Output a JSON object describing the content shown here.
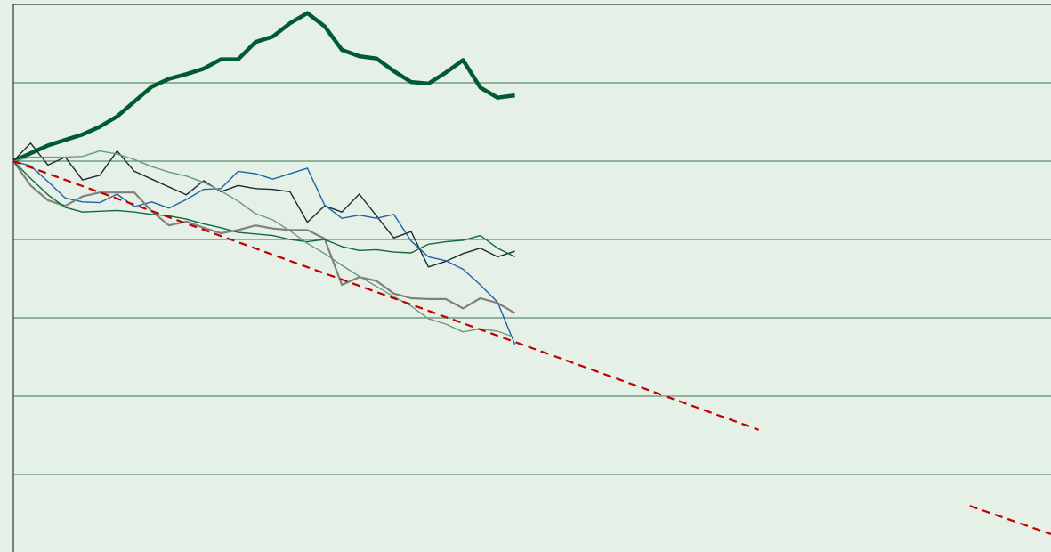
{
  "chart_data": {
    "type": "line",
    "x": [
      0,
      1,
      2,
      3,
      4,
      5,
      6,
      7,
      8,
      9,
      10,
      11,
      12,
      13,
      14,
      15,
      16,
      17,
      18,
      19,
      20,
      21,
      22,
      23,
      24,
      25,
      26,
      27,
      28,
      29
    ],
    "xlim": [
      0,
      60
    ],
    "ylim": [
      -5,
      2
    ],
    "yticks": [
      -4,
      -3,
      -2,
      -1,
      0,
      1
    ],
    "grid": true,
    "series": [
      {
        "color": "#005a32",
        "line_width": 4.5,
        "values": [
          0,
          0.1,
          0.2,
          0.27,
          0.34,
          0.44,
          0.57,
          0.76,
          0.95,
          1.05,
          1.11,
          1.18,
          1.3,
          1.3,
          1.52,
          1.59,
          1.76,
          1.89,
          1.72,
          1.42,
          1.34,
          1.31,
          1.15,
          1.01,
          0.99,
          1.13,
          1.29,
          0.94,
          0.81,
          0.84
        ]
      },
      {
        "color": "#1a2a33",
        "line_width": 1.4,
        "values": [
          0,
          0.23,
          -0.05,
          0.05,
          -0.24,
          -0.18,
          0.13,
          -0.13,
          -0.23,
          -0.33,
          -0.43,
          -0.25,
          -0.39,
          -0.31,
          -0.35,
          -0.36,
          -0.39,
          -0.78,
          -0.57,
          -0.65,
          -0.42,
          -0.7,
          -0.98,
          -0.9,
          -1.35,
          -1.28,
          -1.18,
          -1.11,
          -1.22,
          -1.15
        ]
      },
      {
        "color": "#1f63a8",
        "line_width": 1.4,
        "values": [
          0,
          -0.06,
          -0.26,
          -0.47,
          -0.52,
          -0.53,
          -0.42,
          -0.58,
          -0.52,
          -0.6,
          -0.49,
          -0.36,
          -0.35,
          -0.13,
          -0.16,
          -0.23,
          -0.16,
          -0.09,
          -0.56,
          -0.73,
          -0.69,
          -0.73,
          -0.68,
          -1.02,
          -1.22,
          -1.27,
          -1.38,
          -1.58,
          -1.8,
          -2.34
        ]
      },
      {
        "color": "#808080",
        "line_width": 2.2,
        "values": [
          0,
          -0.31,
          -0.5,
          -0.57,
          -0.45,
          -0.4,
          -0.4,
          -0.4,
          -0.64,
          -0.82,
          -0.77,
          -0.85,
          -0.92,
          -0.88,
          -0.82,
          -0.86,
          -0.88,
          -0.88,
          -0.99,
          -1.58,
          -1.48,
          -1.53,
          -1.69,
          -1.75,
          -1.76,
          -1.76,
          -1.88,
          -1.75,
          -1.81,
          -1.94
        ]
      },
      {
        "color": "#0f6a3c",
        "line_width": 1.4,
        "values": [
          0,
          -0.22,
          -0.43,
          -0.59,
          -0.65,
          -0.64,
          -0.63,
          -0.65,
          -0.68,
          -0.7,
          -0.74,
          -0.8,
          -0.85,
          -0.91,
          -0.93,
          -0.95,
          -1.0,
          -1.03,
          -1.0,
          -1.09,
          -1.14,
          -1.13,
          -1.16,
          -1.17,
          -1.06,
          -1.03,
          -1.01,
          -0.95,
          -1.11,
          -1.22
        ]
      },
      {
        "color": "#6a9a80",
        "line_width": 1.4,
        "values": [
          0,
          0.05,
          0.05,
          0.05,
          0.06,
          0.13,
          0.09,
          0.02,
          -0.07,
          -0.14,
          -0.19,
          -0.27,
          -0.38,
          -0.51,
          -0.67,
          -0.75,
          -0.89,
          -1.05,
          -1.18,
          -1.33,
          -1.47,
          -1.6,
          -1.73,
          -1.85,
          -2.01,
          -2.08,
          -2.18,
          -2.14,
          -2.17,
          -2.25
        ]
      },
      {
        "color": "#c00000",
        "line_width": 2.2,
        "dash": true,
        "x": [
          0,
          43.1,
          49,
          55.3,
          60
        ],
        "values": [
          0,
          -3.43,
          null,
          -4.4,
          -4.76
        ]
      }
    ]
  }
}
